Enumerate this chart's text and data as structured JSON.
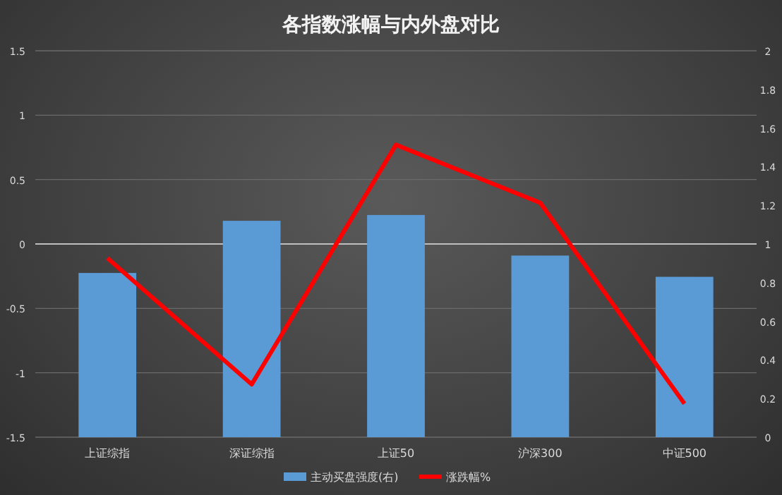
{
  "chart_data": {
    "type": "bar",
    "title": "各指数涨幅与内外盘对比",
    "categories": [
      "上证综指",
      "深证综指",
      "上证50",
      "沪深300",
      "中证500"
    ],
    "series": [
      {
        "name": "主动买盘强度(右)",
        "axis": "y2",
        "color": "#5b9bd5",
        "values": [
          0.85,
          1.12,
          1.15,
          0.94,
          0.83
        ]
      },
      {
        "name": "涨跌幅%",
        "type": "line",
        "axis": "y",
        "color": "#ff0000",
        "values": [
          -0.11,
          -1.09,
          0.77,
          0.32,
          -1.24
        ]
      }
    ],
    "ylim": [
      -1.5,
      1.5
    ],
    "yticks": [
      -1.5,
      -1,
      -0.5,
      0,
      0.5,
      1,
      1.5
    ],
    "y2lim": [
      0,
      2
    ],
    "y2ticks": [
      0,
      0.2,
      0.4,
      0.6,
      0.8,
      1,
      1.2,
      1.4,
      1.6,
      1.8,
      2
    ],
    "grid": "y",
    "legend": "bottom",
    "marker": "none",
    "line_style": "solid"
  }
}
